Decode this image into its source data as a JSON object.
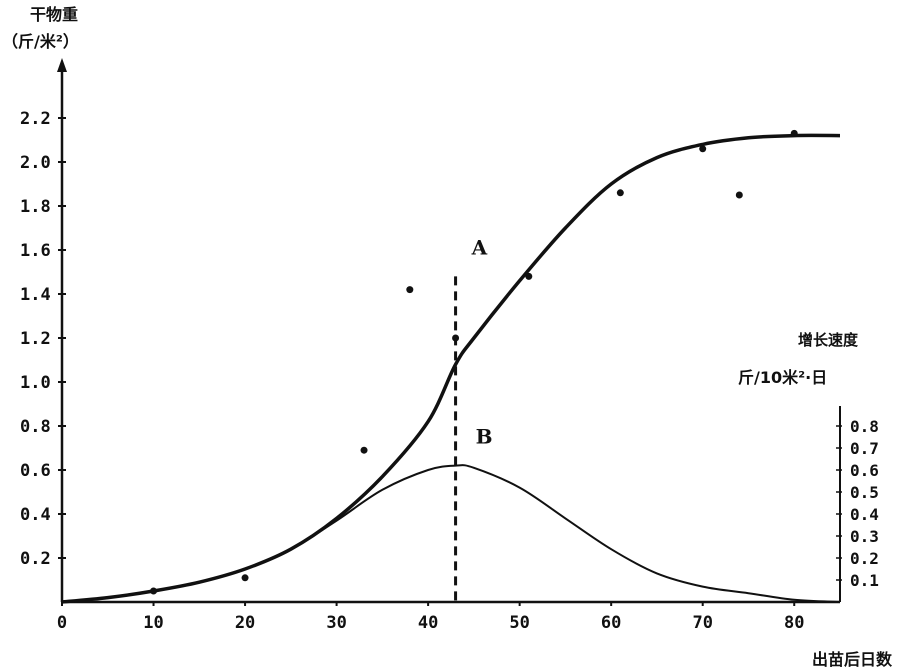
{
  "chart_data": {
    "type": "line",
    "left_axis": {
      "title_line1": "干物重",
      "title_line2": "（斤/米²）",
      "ticks": [
        "0.2",
        "0.4",
        "0.6",
        "0.8",
        "1.0",
        "1.2",
        "1.4",
        "1.6",
        "1.8",
        "2.0",
        "2.2"
      ],
      "ylim": [
        0,
        2.3
      ]
    },
    "right_axis": {
      "title_line1": "增长速度",
      "title_line2": "斤/10米²·日",
      "ticks": [
        "0.1",
        "0.2",
        "0.3",
        "0.4",
        "0.5",
        "0.6",
        "0.7",
        "0.8"
      ],
      "ylim": [
        0,
        0.9
      ]
    },
    "x_axis": {
      "label": "出苗后日数",
      "ticks": [
        "0",
        "10",
        "20",
        "30",
        "40",
        "50",
        "60",
        "70",
        "80"
      ],
      "xlim": [
        0,
        85
      ]
    },
    "marker_x": 43,
    "series": [
      {
        "name": "A",
        "axis": "left",
        "style": "thick",
        "x": [
          0,
          5,
          10,
          15,
          20,
          25,
          30,
          35,
          40,
          43,
          45,
          50,
          55,
          60,
          65,
          70,
          75,
          80,
          85
        ],
        "y": [
          0.0,
          0.02,
          0.05,
          0.09,
          0.15,
          0.24,
          0.38,
          0.57,
          0.82,
          1.08,
          1.2,
          1.46,
          1.7,
          1.9,
          2.02,
          2.08,
          2.11,
          2.12,
          2.12
        ]
      },
      {
        "name": "B",
        "axis": "left",
        "style": "thin",
        "x": [
          0,
          5,
          10,
          15,
          20,
          25,
          30,
          35,
          40,
          43,
          45,
          50,
          55,
          60,
          65,
          70,
          75,
          80,
          85
        ],
        "y": [
          0.0,
          0.02,
          0.05,
          0.09,
          0.15,
          0.24,
          0.37,
          0.51,
          0.6,
          0.62,
          0.61,
          0.52,
          0.38,
          0.24,
          0.13,
          0.07,
          0.04,
          0.01,
          0.0
        ]
      }
    ],
    "observed_points": {
      "x": [
        10,
        20,
        33,
        38,
        43,
        51,
        61,
        70,
        74,
        80
      ],
      "y": [
        0.05,
        0.11,
        0.69,
        1.42,
        1.2,
        1.48,
        1.86,
        2.06,
        1.85,
        2.13
      ]
    }
  }
}
